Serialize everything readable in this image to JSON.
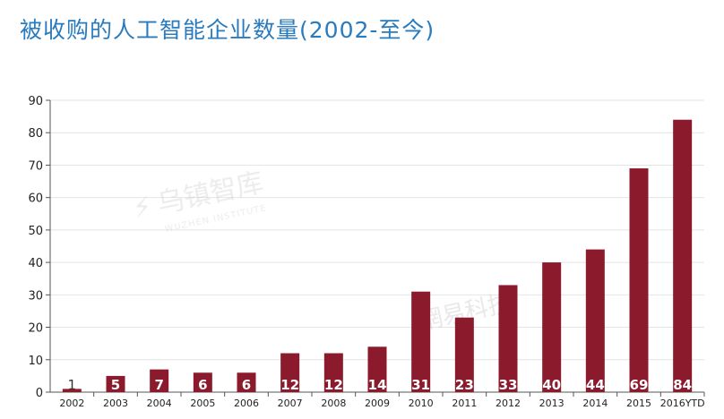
{
  "title": "被收购的人工智能企业数量(2002-至今)",
  "chart_data": {
    "type": "bar",
    "categories": [
      "2002",
      "2003",
      "2004",
      "2005",
      "2006",
      "2007",
      "2008",
      "2009",
      "2010",
      "2011",
      "2012",
      "2013",
      "2014",
      "2015",
      "2016YTD"
    ],
    "values": [
      1,
      5,
      7,
      6,
      6,
      12,
      12,
      14,
      31,
      23,
      33,
      40,
      44,
      69,
      84
    ],
    "ylim": [
      0,
      90
    ],
    "yticks": [
      0,
      10,
      20,
      30,
      40,
      50,
      60,
      70,
      80,
      90
    ],
    "grid": true,
    "bar_color": "#8b1a2d",
    "label_color": "#ffffff"
  },
  "watermark": {
    "brand": "乌镇智库",
    "brand_en": "WUZHEN INSTITUTE",
    "stamp": "網易科技"
  }
}
